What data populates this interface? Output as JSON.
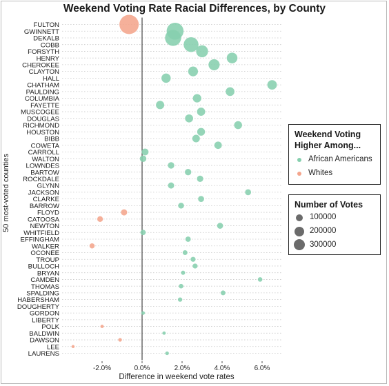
{
  "chart_data": {
    "type": "scatter",
    "title": "Weekend Voting Rate Racial Differences, by County",
    "xlabel": "Difference in weekend vote rates",
    "ylabel": "50 most-voted counties",
    "xlim": [
      -0.04,
      0.07
    ],
    "x_ticks": [
      -0.02,
      0.0,
      0.02,
      0.04,
      0.06
    ],
    "x_tick_labels": [
      "-2.0%",
      "0.0%",
      "2.0%",
      "4.0%",
      "6.0%"
    ],
    "vline_at": 0,
    "grid": "horizontal dotted",
    "colors": {
      "African Americans": "#86cfae",
      "Whites": "#f4a58c"
    },
    "counties": [
      {
        "county": "FULTON",
        "x": -0.0065,
        "group": "Whites",
        "votes": 390000
      },
      {
        "county": "GWINNETT",
        "x": 0.0165,
        "group": "African Americans",
        "votes": 300000
      },
      {
        "county": "DEKALB",
        "x": 0.0155,
        "group": "African Americans",
        "votes": 270000
      },
      {
        "county": "COBB",
        "x": 0.0245,
        "group": "African Americans",
        "votes": 230000
      },
      {
        "county": "FORSYTH",
        "x": 0.03,
        "group": "African Americans",
        "votes": 150000
      },
      {
        "county": "HENRY",
        "x": 0.045,
        "group": "African Americans",
        "votes": 120000
      },
      {
        "county": "CHEROKEE",
        "x": 0.036,
        "group": "African Americans",
        "votes": 130000
      },
      {
        "county": "CLAYTON",
        "x": 0.0255,
        "group": "African Americans",
        "votes": 100000
      },
      {
        "county": "HALL",
        "x": 0.012,
        "group": "African Americans",
        "votes": 90000
      },
      {
        "county": "CHATHAM",
        "x": 0.065,
        "group": "African Americans",
        "votes": 95000
      },
      {
        "county": "PAULDING",
        "x": 0.044,
        "group": "African Americans",
        "votes": 80000
      },
      {
        "county": "COLUMBIA",
        "x": 0.0275,
        "group": "African Americans",
        "votes": 75000
      },
      {
        "county": "FAYETTE",
        "x": 0.009,
        "group": "African Americans",
        "votes": 72000
      },
      {
        "county": "MUSCOGEE",
        "x": 0.0295,
        "group": "African Americans",
        "votes": 70000
      },
      {
        "county": "DOUGLAS",
        "x": 0.0235,
        "group": "African Americans",
        "votes": 68000
      },
      {
        "county": "RICHMOND",
        "x": 0.048,
        "group": "African Americans",
        "votes": 66000
      },
      {
        "county": "HOUSTON",
        "x": 0.0295,
        "group": "African Americans",
        "votes": 64000
      },
      {
        "county": "BIBB",
        "x": 0.027,
        "group": "African Americans",
        "votes": 60000
      },
      {
        "county": "COWETA",
        "x": 0.038,
        "group": "African Americans",
        "votes": 58000
      },
      {
        "county": "CARROLL",
        "x": 0.0015,
        "group": "African Americans",
        "votes": 50000
      },
      {
        "county": "WALTON",
        "x": 0.0005,
        "group": "African Americans",
        "votes": 45000
      },
      {
        "county": "LOWNDES",
        "x": 0.0145,
        "group": "African Americans",
        "votes": 44000
      },
      {
        "county": "BARTOW",
        "x": 0.023,
        "group": "African Americans",
        "votes": 43000
      },
      {
        "county": "ROCKDALE",
        "x": 0.029,
        "group": "African Americans",
        "votes": 42000
      },
      {
        "county": "GLYNN",
        "x": 0.0145,
        "group": "African Americans",
        "votes": 40000
      },
      {
        "county": "JACKSON",
        "x": 0.053,
        "group": "African Americans",
        "votes": 38000
      },
      {
        "county": "CLARKE",
        "x": 0.0295,
        "group": "African Americans",
        "votes": 38000
      },
      {
        "county": "BARROW",
        "x": 0.0195,
        "group": "African Americans",
        "votes": 36000
      },
      {
        "county": "FLOYD",
        "x": -0.009,
        "group": "Whites",
        "votes": 40000
      },
      {
        "county": "CATOOSA",
        "x": -0.021,
        "group": "Whites",
        "votes": 34000
      },
      {
        "county": "NEWTON",
        "x": 0.039,
        "group": "African Americans",
        "votes": 38000
      },
      {
        "county": "WHITFIELD",
        "x": 0.0005,
        "group": "African Americans",
        "votes": 30000
      },
      {
        "county": "EFFINGHAM",
        "x": 0.023,
        "group": "African Americans",
        "votes": 30000
      },
      {
        "county": "WALKER",
        "x": -0.025,
        "group": "Whites",
        "votes": 28000
      },
      {
        "county": "OCONEE",
        "x": 0.0215,
        "group": "African Americans",
        "votes": 24000
      },
      {
        "county": "TROUP",
        "x": 0.0255,
        "group": "African Americans",
        "votes": 26000
      },
      {
        "county": "BULLOCH",
        "x": 0.0265,
        "group": "African Americans",
        "votes": 26000
      },
      {
        "county": "BRYAN",
        "x": 0.0205,
        "group": "African Americans",
        "votes": 18000
      },
      {
        "county": "CAMDEN",
        "x": 0.059,
        "group": "African Americans",
        "votes": 22000
      },
      {
        "county": "THOMAS",
        "x": 0.0195,
        "group": "African Americans",
        "votes": 22000
      },
      {
        "county": "SPALDING",
        "x": 0.0405,
        "group": "African Americans",
        "votes": 24000
      },
      {
        "county": "HABERSHAM",
        "x": 0.019,
        "group": "African Americans",
        "votes": 20000
      },
      {
        "county": "DOUGHERTY",
        "x": null,
        "group": "African Americans",
        "votes": 0
      },
      {
        "county": "GORDON",
        "x": 0.0005,
        "group": "African Americans",
        "votes": 14000
      },
      {
        "county": "LIBERTY",
        "x": null,
        "group": "African Americans",
        "votes": 0
      },
      {
        "county": "POLK",
        "x": -0.02,
        "group": "Whites",
        "votes": 12000
      },
      {
        "county": "BALDWIN",
        "x": 0.011,
        "group": "African Americans",
        "votes": 12000
      },
      {
        "county": "DAWSON",
        "x": -0.011,
        "group": "Whites",
        "votes": 14000
      },
      {
        "county": "LEE",
        "x": -0.0345,
        "group": "Whites",
        "votes": 10000
      },
      {
        "county": "LAURENS",
        "x": 0.0125,
        "group": "African Americans",
        "votes": 14000
      }
    ],
    "legend": {
      "color_title": "Weekend Voting Higher Among...",
      "color_title_line1": "Weekend Voting",
      "color_title_line2": "Higher Among...",
      "color_items": [
        {
          "label": "African Americans",
          "color": "#86cfae"
        },
        {
          "label": "Whites",
          "color": "#f4a58c"
        }
      ],
      "size_title": "Number of Votes",
      "size_items": [
        {
          "label": "100000",
          "votes": 100000
        },
        {
          "label": "200000",
          "votes": 200000
        },
        {
          "label": "300000",
          "votes": 300000
        }
      ],
      "placement": "right"
    }
  }
}
